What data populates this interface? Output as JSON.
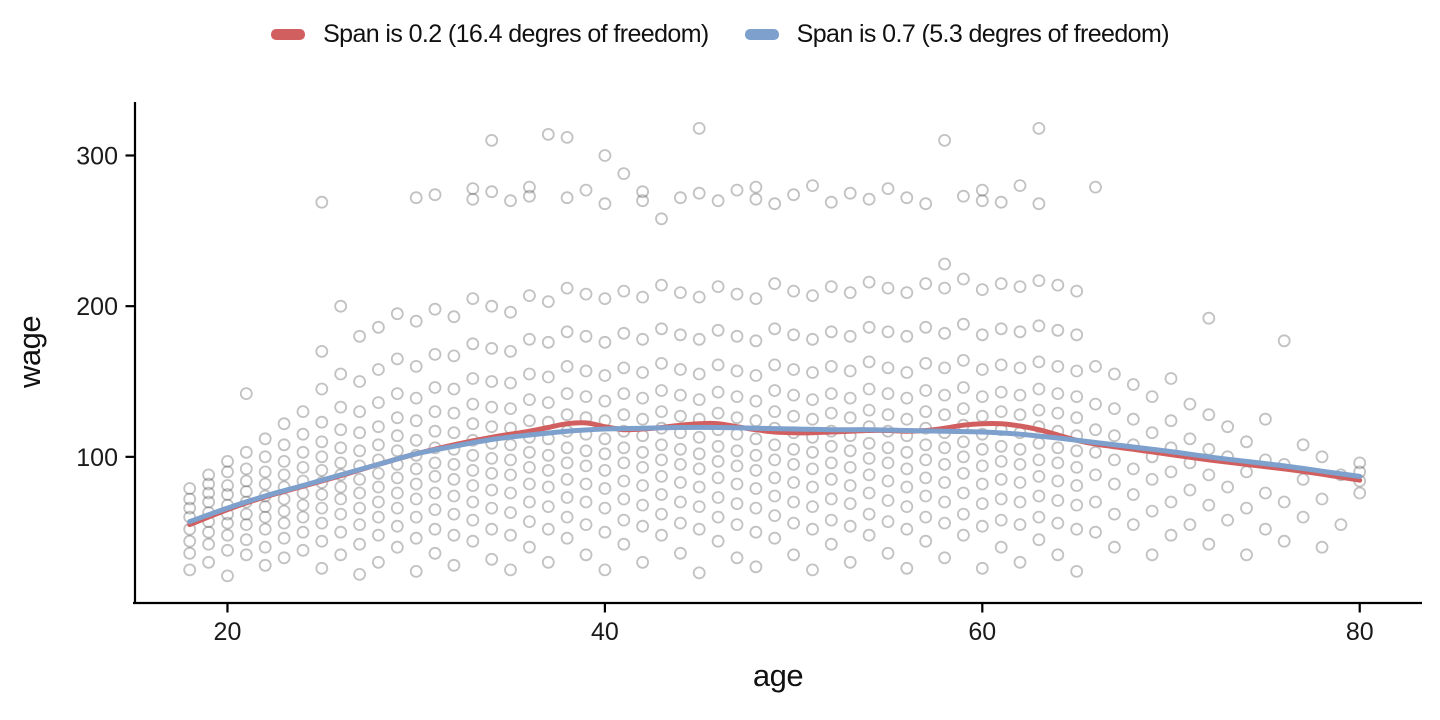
{
  "figure": {
    "background": "#ffffff"
  },
  "chart_data": {
    "type": "scatter",
    "title": "",
    "xlabel": "age",
    "ylabel": "wage",
    "x_ticks": [
      20,
      40,
      60,
      80
    ],
    "y_ticks": [
      100,
      200,
      300
    ],
    "xlim": [
      15.1,
      83.3
    ],
    "ylim": [
      3,
      335.5
    ],
    "grid": "off",
    "legend_position": "top",
    "axis_style": {
      "line_color": "#000000",
      "text_color": "#1a1a1a",
      "tick_font_size": 25
    },
    "point_style": {
      "shape": "open-circle",
      "color": "#404040",
      "opacity": 0.32,
      "radius": 5.5,
      "stroke_width": 1.8
    },
    "series": [
      {
        "name": "Span is 0.2 (16.4 degres of freedom)",
        "type": "loess",
        "span": 0.2,
        "color": "#D25F5F",
        "line_width": 5,
        "points": [
          [
            18,
            55
          ],
          [
            20,
            65
          ],
          [
            22,
            73.5
          ],
          [
            24,
            80.5
          ],
          [
            26,
            87.5
          ],
          [
            28,
            95
          ],
          [
            30,
            102
          ],
          [
            32,
            108
          ],
          [
            34,
            113
          ],
          [
            36,
            117
          ],
          [
            37,
            119.5
          ],
          [
            38,
            122
          ],
          [
            39,
            122.5
          ],
          [
            40,
            120
          ],
          [
            41,
            118
          ],
          [
            42,
            118.5
          ],
          [
            43,
            119.5
          ],
          [
            44,
            121
          ],
          [
            45,
            122
          ],
          [
            46,
            122
          ],
          [
            47,
            120
          ],
          [
            48,
            118
          ],
          [
            49,
            116.5
          ],
          [
            50,
            116
          ],
          [
            51,
            116
          ],
          [
            52,
            116.5
          ],
          [
            53,
            117
          ],
          [
            54,
            117.5
          ],
          [
            55,
            117.5
          ],
          [
            56,
            117
          ],
          [
            57,
            117.5
          ],
          [
            58,
            119
          ],
          [
            59,
            121
          ],
          [
            60,
            122
          ],
          [
            61,
            122
          ],
          [
            62,
            120.5
          ],
          [
            63,
            118
          ],
          [
            64,
            114.5
          ],
          [
            65,
            111
          ],
          [
            66,
            108.5
          ],
          [
            68,
            105
          ],
          [
            70,
            101.5
          ],
          [
            72,
            98
          ],
          [
            74,
            95
          ],
          [
            76,
            92
          ],
          [
            78,
            88.5
          ],
          [
            80,
            84.5
          ]
        ]
      },
      {
        "name": "Span is 0.7 (5.3 degres of freedom)",
        "type": "loess",
        "span": 0.7,
        "color": "#7EA0CC",
        "line_width": 5,
        "points": [
          [
            18,
            57
          ],
          [
            20,
            66
          ],
          [
            22,
            74
          ],
          [
            24,
            81
          ],
          [
            26,
            88
          ],
          [
            28,
            95
          ],
          [
            30,
            102
          ],
          [
            32,
            107
          ],
          [
            34,
            111.5
          ],
          [
            36,
            114.5
          ],
          [
            38,
            117
          ],
          [
            40,
            118.5
          ],
          [
            42,
            119
          ],
          [
            44,
            119.5
          ],
          [
            46,
            119.5
          ],
          [
            48,
            119
          ],
          [
            50,
            118.5
          ],
          [
            52,
            118
          ],
          [
            54,
            118
          ],
          [
            56,
            117.5
          ],
          [
            58,
            117
          ],
          [
            60,
            116.5
          ],
          [
            62,
            115
          ],
          [
            64,
            112.5
          ],
          [
            66,
            109.5
          ],
          [
            68,
            106.5
          ],
          [
            70,
            103.5
          ],
          [
            72,
            100
          ],
          [
            74,
            97
          ],
          [
            76,
            94
          ],
          [
            78,
            90.5
          ],
          [
            80,
            87
          ]
        ]
      }
    ],
    "scatter_points_by_age": [
      [
        18,
        [
          25,
          36,
          44,
          52,
          60,
          66,
          72,
          79
        ]
      ],
      [
        19,
        [
          30,
          42,
          50,
          57,
          63,
          70,
          76,
          82,
          88
        ]
      ],
      [
        20,
        [
          21,
          38,
          48,
          56,
          62,
          68,
          75,
          81,
          90,
          97
        ]
      ],
      [
        21,
        [
          35,
          45,
          55,
          62,
          70,
          77,
          84,
          92,
          103,
          142
        ]
      ],
      [
        22,
        [
          28,
          40,
          52,
          60,
          67,
          74,
          82,
          90,
          100,
          112
        ]
      ],
      [
        23,
        [
          33,
          46,
          56,
          64,
          72,
          80,
          88,
          97,
          108,
          122
        ]
      ],
      [
        24,
        [
          38,
          50,
          60,
          68,
          76,
          84,
          93,
          103,
          115,
          130
        ]
      ],
      [
        25,
        [
          26,
          44,
          56,
          66,
          75,
          83,
          91,
          100,
          110,
          123,
          145,
          170,
          269
        ]
      ],
      [
        26,
        [
          35,
          50,
          62,
          72,
          80,
          88,
          96,
          106,
          118,
          133,
          155,
          200
        ]
      ],
      [
        27,
        [
          22,
          42,
          55,
          66,
          76,
          85,
          94,
          104,
          116,
          130,
          150,
          180
        ]
      ],
      [
        28,
        [
          30,
          48,
          60,
          70,
          80,
          89,
          98,
          108,
          120,
          136,
          158,
          186
        ]
      ],
      [
        29,
        [
          40,
          54,
          66,
          76,
          86,
          95,
          104,
          114,
          126,
          142,
          165,
          195
        ]
      ],
      [
        30,
        [
          24,
          46,
          60,
          72,
          82,
          92,
          101,
          111,
          124,
          139,
          160,
          190,
          272
        ]
      ],
      [
        31,
        [
          36,
          52,
          65,
          76,
          87,
          96,
          106,
          117,
          130,
          146,
          168,
          198,
          274
        ]
      ],
      [
        32,
        [
          28,
          48,
          62,
          74,
          85,
          95,
          105,
          116,
          129,
          145,
          167,
          193
        ]
      ],
      [
        33,
        [
          44,
          58,
          70,
          81,
          91,
          101,
          111,
          122,
          135,
          152,
          175,
          205,
          271,
          278
        ]
      ],
      [
        34,
        [
          32,
          52,
          66,
          78,
          89,
          99,
          109,
          120,
          133,
          150,
          172,
          200,
          276,
          310
        ]
      ],
      [
        35,
        [
          25,
          48,
          63,
          76,
          88,
          98,
          108,
          119,
          132,
          149,
          170,
          196,
          270
        ]
      ],
      [
        36,
        [
          40,
          57,
          70,
          82,
          93,
          103,
          113,
          124,
          138,
          155,
          178,
          207,
          273,
          279
        ]
      ],
      [
        37,
        [
          30,
          52,
          67,
          80,
          91,
          101,
          112,
          123,
          136,
          153,
          176,
          203,
          314
        ]
      ],
      [
        38,
        [
          46,
          60,
          73,
          85,
          96,
          106,
          117,
          128,
          142,
          160,
          183,
          212,
          272,
          312
        ]
      ],
      [
        39,
        [
          35,
          55,
          70,
          82,
          94,
          104,
          115,
          126,
          140,
          157,
          180,
          208,
          277
        ]
      ],
      [
        40,
        [
          25,
          50,
          66,
          79,
          91,
          102,
          112,
          124,
          137,
          154,
          176,
          205,
          268,
          300
        ]
      ],
      [
        41,
        [
          42,
          58,
          72,
          84,
          96,
          106,
          117,
          128,
          142,
          159,
          182,
          210,
          288
        ]
      ],
      [
        42,
        [
          30,
          54,
          68,
          81,
          93,
          103,
          114,
          125,
          139,
          156,
          178,
          206,
          270,
          276
        ]
      ],
      [
        43,
        [
          48,
          62,
          75,
          87,
          98,
          108,
          119,
          130,
          144,
          162,
          185,
          214,
          258
        ]
      ],
      [
        44,
        [
          36,
          56,
          70,
          83,
          95,
          105,
          116,
          127,
          141,
          158,
          181,
          209,
          272
        ]
      ],
      [
        45,
        [
          23,
          52,
          67,
          80,
          92,
          102,
          113,
          125,
          138,
          155,
          178,
          206,
          275,
          318
        ]
      ],
      [
        46,
        [
          44,
          60,
          73,
          86,
          97,
          107,
          118,
          129,
          143,
          161,
          184,
          213,
          270
        ]
      ],
      [
        47,
        [
          33,
          55,
          69,
          82,
          94,
          104,
          115,
          126,
          140,
          157,
          180,
          208,
          277
        ]
      ],
      [
        48,
        [
          27,
          50,
          66,
          79,
          91,
          101,
          112,
          124,
          137,
          154,
          177,
          205,
          271,
          279
        ]
      ],
      [
        49,
        [
          46,
          61,
          74,
          86,
          98,
          108,
          119,
          130,
          144,
          161,
          185,
          215,
          268
        ]
      ],
      [
        50,
        [
          35,
          56,
          70,
          83,
          95,
          105,
          116,
          127,
          141,
          158,
          181,
          210,
          274
        ]
      ],
      [
        51,
        [
          25,
          52,
          67,
          80,
          92,
          103,
          113,
          125,
          138,
          156,
          178,
          207,
          280
        ]
      ],
      [
        52,
        [
          42,
          58,
          72,
          85,
          96,
          107,
          117,
          129,
          142,
          160,
          183,
          213,
          269
        ]
      ],
      [
        53,
        [
          30,
          54,
          69,
          81,
          93,
          104,
          114,
          126,
          139,
          157,
          180,
          209,
          275
        ]
      ],
      [
        54,
        [
          48,
          62,
          76,
          88,
          99,
          109,
          120,
          131,
          145,
          163,
          186,
          216,
          271
        ]
      ],
      [
        55,
        [
          36,
          57,
          71,
          84,
          96,
          106,
          117,
          128,
          142,
          159,
          183,
          212,
          278
        ]
      ],
      [
        56,
        [
          26,
          52,
          67,
          80,
          92,
          103,
          114,
          125,
          139,
          156,
          180,
          209,
          272
        ]
      ],
      [
        57,
        [
          44,
          60,
          74,
          86,
          98,
          108,
          119,
          130,
          144,
          162,
          186,
          215,
          268
        ]
      ],
      [
        58,
        [
          33,
          56,
          70,
          83,
          95,
          106,
          116,
          128,
          141,
          159,
          182,
          212,
          228,
          310
        ]
      ],
      [
        59,
        [
          48,
          62,
          76,
          89,
          100,
          110,
          121,
          132,
          146,
          164,
          188,
          218,
          273
        ]
      ],
      [
        60,
        [
          26,
          54,
          69,
          82,
          94,
          105,
          115,
          127,
          140,
          158,
          181,
          211,
          270,
          277
        ]
      ],
      [
        61,
        [
          40,
          58,
          72,
          85,
          97,
          107,
          118,
          130,
          143,
          161,
          185,
          215,
          269
        ]
      ],
      [
        62,
        [
          30,
          55,
          70,
          83,
          95,
          105,
          116,
          128,
          141,
          159,
          183,
          213,
          280
        ]
      ],
      [
        63,
        [
          45,
          60,
          74,
          87,
          98,
          109,
          120,
          131,
          145,
          163,
          187,
          217,
          268,
          318
        ]
      ],
      [
        64,
        [
          35,
          56,
          71,
          84,
          96,
          106,
          117,
          129,
          142,
          160,
          184,
          214
        ]
      ],
      [
        65,
        [
          24,
          52,
          68,
          81,
          93,
          104,
          114,
          126,
          140,
          157,
          181,
          210
        ]
      ],
      [
        66,
        [
          50,
          70,
          88,
          103,
          118,
          135,
          160,
          279
        ]
      ],
      [
        67,
        [
          40,
          62,
          82,
          98,
          114,
          132,
          155
        ]
      ],
      [
        68,
        [
          55,
          75,
          92,
          108,
          125,
          148
        ]
      ],
      [
        69,
        [
          35,
          64,
          85,
          100,
          116,
          140
        ]
      ],
      [
        70,
        [
          48,
          70,
          90,
          106,
          124,
          152
        ]
      ],
      [
        71,
        [
          55,
          78,
          96,
          112,
          135
        ]
      ],
      [
        72,
        [
          42,
          68,
          88,
          105,
          128,
          192
        ]
      ],
      [
        73,
        [
          58,
          80,
          100,
          120
        ]
      ],
      [
        74,
        [
          35,
          66,
          90,
          110
        ]
      ],
      [
        75,
        [
          52,
          76,
          98,
          125
        ]
      ],
      [
        76,
        [
          44,
          70,
          95,
          177
        ]
      ],
      [
        77,
        [
          60,
          85,
          108
        ]
      ],
      [
        78,
        [
          40,
          72,
          100
        ]
      ],
      [
        79,
        [
          55,
          88
        ]
      ],
      [
        80,
        [
          76,
          84,
          90,
          96
        ]
      ]
    ]
  }
}
